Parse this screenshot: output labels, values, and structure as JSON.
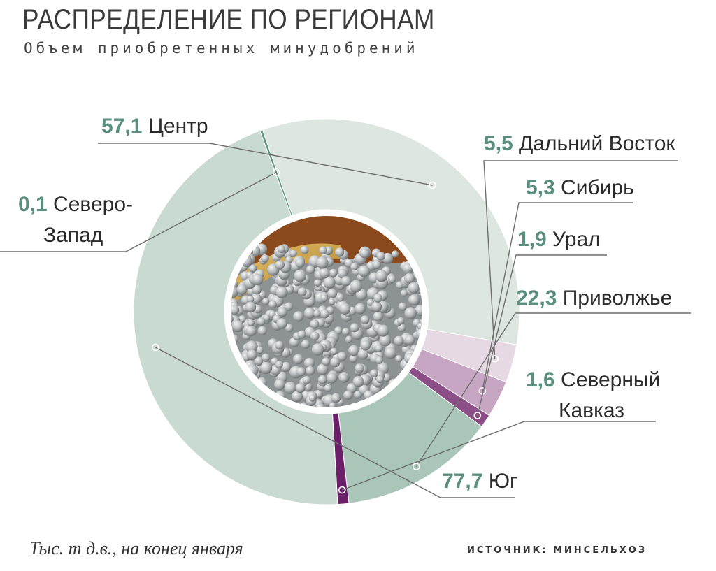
{
  "header": {
    "title": "РАСПРЕДЕЛЕНИЕ ПО РЕГИОНАМ",
    "subtitle": "Объем приобретенных минудобрений"
  },
  "footer": {
    "note": "Тыс. т д.в., на конец января",
    "source": "ИСТОЧНИК: МИНСЕЛЬХОЗ"
  },
  "chart_data": {
    "type": "pie",
    "variant": "donut",
    "unit": "Тыс. т д.в.",
    "slices": [
      {
        "label": "Центр",
        "value": 57.1,
        "value_text": "57,1",
        "color": "#dde6e1"
      },
      {
        "label": "Дальний Восток",
        "value": 5.5,
        "value_text": "5,5",
        "color": "#e6d9e4"
      },
      {
        "label": "Сибирь",
        "value": 5.3,
        "value_text": "5,3",
        "color": "#c7a6c3"
      },
      {
        "label": "Урал",
        "value": 1.9,
        "value_text": "1,9",
        "color": "#8c4e87"
      },
      {
        "label": "Приволжье",
        "value": 22.3,
        "value_text": "22,3",
        "color": "#a9c6b9"
      },
      {
        "label": "Северный Кавказ",
        "value": 1.6,
        "value_text": "1,6",
        "color": "#6a1f68"
      },
      {
        "label": "Юг",
        "value": 77.7,
        "value_text": "77,7",
        "color": "#c9dad2"
      },
      {
        "label": "Северо-Запад",
        "value": 0.1,
        "value_text": "0,1",
        "color": "#5f9683"
      }
    ],
    "center_image": "fertilizer-granules-photo"
  }
}
